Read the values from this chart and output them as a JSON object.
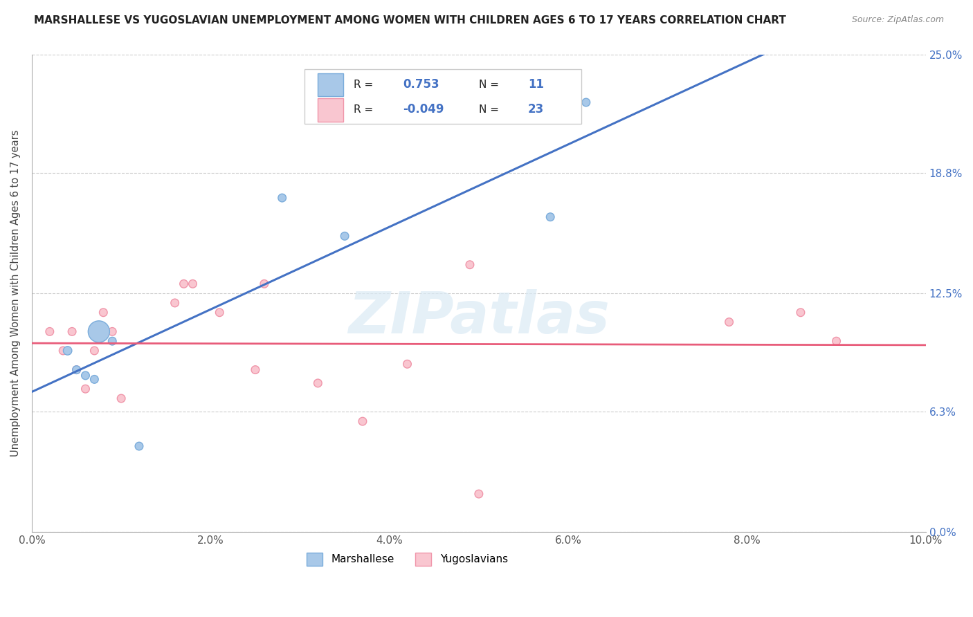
{
  "title": "MARSHALLESE VS YUGOSLAVIAN UNEMPLOYMENT AMONG WOMEN WITH CHILDREN AGES 6 TO 17 YEARS CORRELATION CHART",
  "source": "Source: ZipAtlas.com",
  "ylabel": "Unemployment Among Women with Children Ages 6 to 17 years",
  "xlim": [
    0.0,
    10.0
  ],
  "ylim": [
    0.0,
    25.0
  ],
  "xticks": [
    0,
    2,
    4,
    6,
    8,
    10
  ],
  "xticklabels": [
    "0.0%",
    "2.0%",
    "4.0%",
    "6.0%",
    "8.0%",
    "10.0%"
  ],
  "yticks": [
    0.0,
    6.3,
    12.5,
    18.8,
    25.0
  ],
  "yticklabels": [
    "0.0%",
    "6.3%",
    "12.5%",
    "18.8%",
    "25.0%"
  ],
  "watermark": "ZIPatlas",
  "marshallese_r": "0.753",
  "marshallese_n": "11",
  "yugoslavian_r": "-0.049",
  "yugoslavian_n": "23",
  "marshallese_dot_color": "#a8c8e8",
  "marshallese_edge_color": "#7aacdb",
  "yugoslavian_dot_color": "#f9c6d0",
  "yugoslavian_edge_color": "#f096aa",
  "trend_blue": "#4472c4",
  "trend_pink": "#e85c7a",
  "legend_text_color": "#4472c4",
  "legend_label_color": "#333333",
  "marshallese_points_x": [
    0.4,
    0.5,
    0.6,
    0.7,
    0.75,
    0.9,
    2.8,
    3.5,
    5.8,
    6.2,
    1.2
  ],
  "marshallese_points_y": [
    9.5,
    8.5,
    8.2,
    8.0,
    10.5,
    10.0,
    17.5,
    15.5,
    16.5,
    22.5,
    4.5
  ],
  "marshallese_sizes": [
    80,
    70,
    70,
    70,
    500,
    70,
    70,
    70,
    70,
    70,
    70
  ],
  "yugoslavian_points_x": [
    0.2,
    0.35,
    0.45,
    0.5,
    0.6,
    0.7,
    0.8,
    0.9,
    1.0,
    1.6,
    1.7,
    1.8,
    2.1,
    2.5,
    2.6,
    3.2,
    3.7,
    4.2,
    5.0,
    7.8,
    8.6,
    9.0,
    4.9
  ],
  "yugoslavian_points_y": [
    10.5,
    9.5,
    10.5,
    8.5,
    7.5,
    9.5,
    11.5,
    10.5,
    7.0,
    12.0,
    13.0,
    13.0,
    11.5,
    8.5,
    13.0,
    7.8,
    5.8,
    8.8,
    2.0,
    11.0,
    11.5,
    10.0,
    14.0
  ],
  "yugoslavian_sizes": [
    70,
    70,
    70,
    70,
    70,
    70,
    70,
    70,
    70,
    70,
    70,
    70,
    70,
    70,
    70,
    70,
    70,
    70,
    70,
    70,
    70,
    70,
    70
  ]
}
